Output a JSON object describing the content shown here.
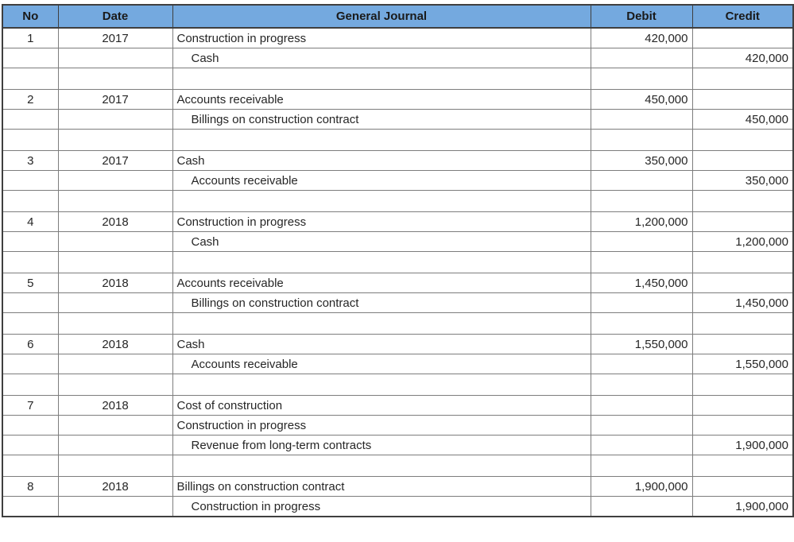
{
  "colors": {
    "header_bg": "#74a9df",
    "header_text": "#1a1a1a",
    "body_text": "#262626",
    "grid_line": "#7d7d7d",
    "outer_border": "#3f3f3f"
  },
  "table": {
    "headers": [
      "No",
      "Date",
      "General Journal",
      "Debit",
      "Credit"
    ],
    "rows": [
      {
        "no": "1",
        "date": "2017",
        "account": "Construction in progress",
        "indent": 0,
        "debit": "420,000",
        "credit": "",
        "blank": false
      },
      {
        "no": "",
        "date": "",
        "account": "Cash",
        "indent": 1,
        "debit": "",
        "credit": "420,000",
        "blank": false
      },
      {
        "no": "",
        "date": "",
        "account": "",
        "indent": 0,
        "debit": "",
        "credit": "",
        "blank": true
      },
      {
        "no": "2",
        "date": "2017",
        "account": "Accounts receivable",
        "indent": 0,
        "debit": "450,000",
        "credit": "",
        "blank": false
      },
      {
        "no": "",
        "date": "",
        "account": "Billings on construction contract",
        "indent": 1,
        "debit": "",
        "credit": "450,000",
        "blank": false
      },
      {
        "no": "",
        "date": "",
        "account": "",
        "indent": 0,
        "debit": "",
        "credit": "",
        "blank": true
      },
      {
        "no": "3",
        "date": "2017",
        "account": "Cash",
        "indent": 0,
        "debit": "350,000",
        "credit": "",
        "blank": false
      },
      {
        "no": "",
        "date": "",
        "account": "Accounts receivable",
        "indent": 1,
        "debit": "",
        "credit": "350,000",
        "blank": false
      },
      {
        "no": "",
        "date": "",
        "account": "",
        "indent": 0,
        "debit": "",
        "credit": "",
        "blank": true
      },
      {
        "no": "4",
        "date": "2018",
        "account": "Construction in progress",
        "indent": 0,
        "debit": "1,200,000",
        "credit": "",
        "blank": false
      },
      {
        "no": "",
        "date": "",
        "account": "Cash",
        "indent": 1,
        "debit": "",
        "credit": "1,200,000",
        "blank": false
      },
      {
        "no": "",
        "date": "",
        "account": "",
        "indent": 0,
        "debit": "",
        "credit": "",
        "blank": true
      },
      {
        "no": "5",
        "date": "2018",
        "account": "Accounts receivable",
        "indent": 0,
        "debit": "1,450,000",
        "credit": "",
        "blank": false
      },
      {
        "no": "",
        "date": "",
        "account": "Billings on construction contract",
        "indent": 1,
        "debit": "",
        "credit": "1,450,000",
        "blank": false
      },
      {
        "no": "",
        "date": "",
        "account": "",
        "indent": 0,
        "debit": "",
        "credit": "",
        "blank": true
      },
      {
        "no": "6",
        "date": "2018",
        "account": "Cash",
        "indent": 0,
        "debit": "1,550,000",
        "credit": "",
        "blank": false
      },
      {
        "no": "",
        "date": "",
        "account": "Accounts receivable",
        "indent": 1,
        "debit": "",
        "credit": "1,550,000",
        "blank": false
      },
      {
        "no": "",
        "date": "",
        "account": "",
        "indent": 0,
        "debit": "",
        "credit": "",
        "blank": true
      },
      {
        "no": "7",
        "date": "2018",
        "account": "Cost of construction",
        "indent": 0,
        "debit": "",
        "credit": "",
        "blank": false
      },
      {
        "no": "",
        "date": "",
        "account": "Construction in progress",
        "indent": 0,
        "debit": "",
        "credit": "",
        "blank": false
      },
      {
        "no": "",
        "date": "",
        "account": "Revenue from long-term contracts",
        "indent": 1,
        "debit": "",
        "credit": "1,900,000",
        "blank": false
      },
      {
        "no": "",
        "date": "",
        "account": "",
        "indent": 0,
        "debit": "",
        "credit": "",
        "blank": true
      },
      {
        "no": "8",
        "date": "2018",
        "account": "Billings on construction contract",
        "indent": 0,
        "debit": "1,900,000",
        "credit": "",
        "blank": false
      },
      {
        "no": "",
        "date": "",
        "account": "Construction in progress",
        "indent": 1,
        "debit": "",
        "credit": "1,900,000",
        "blank": false
      }
    ]
  }
}
